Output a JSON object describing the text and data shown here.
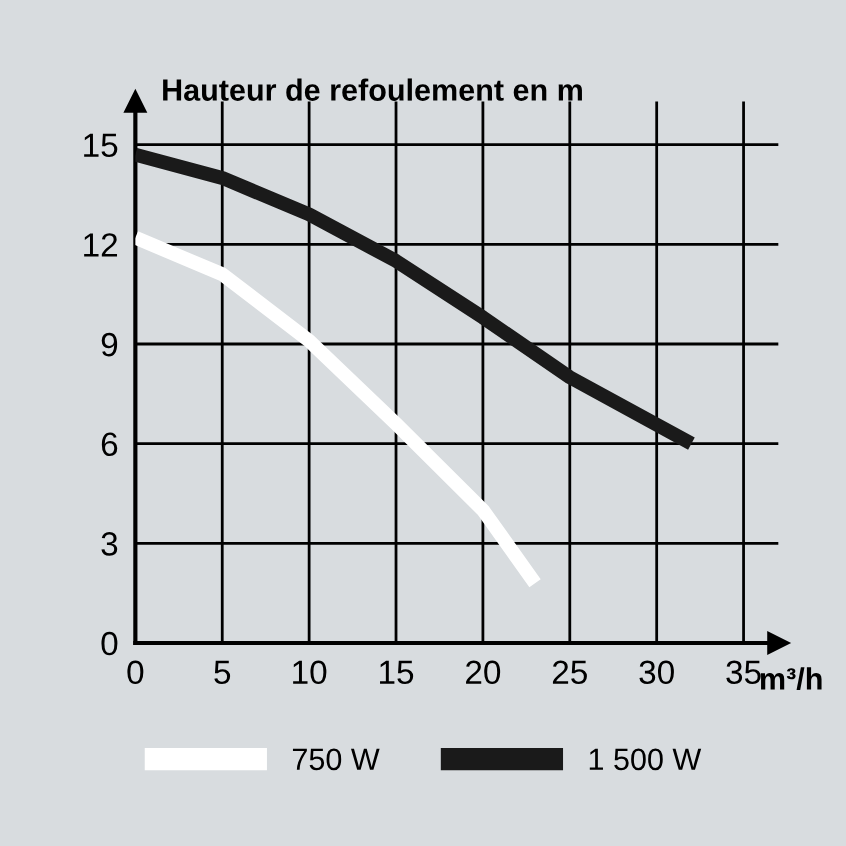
{
  "chart_data": {
    "type": "line",
    "ylabel": "Hauteur de refoulement en m",
    "xlabel": "m³/h",
    "xlim": [
      0,
      37
    ],
    "ylim": [
      0,
      16.3
    ],
    "xticks": [
      0,
      5,
      10,
      15,
      20,
      25,
      30,
      35
    ],
    "yticks": [
      0,
      3,
      6,
      9,
      12,
      15
    ],
    "grid": true,
    "legend": "bottom",
    "marker": "none",
    "line_style": "solid",
    "series": [
      {
        "name": "750 W",
        "color": "#ffffff",
        "x": [
          0,
          5,
          10,
          15,
          20,
          23
        ],
        "values": [
          12.2,
          11.1,
          9.1,
          6.6,
          4.0,
          1.8
        ]
      },
      {
        "name": "1 500 W",
        "color": "#1a1a1a",
        "x": [
          0,
          5,
          10,
          15,
          20,
          25,
          32
        ],
        "values": [
          14.7,
          14.0,
          12.9,
          11.5,
          9.8,
          8.0,
          6.0
        ]
      }
    ]
  }
}
